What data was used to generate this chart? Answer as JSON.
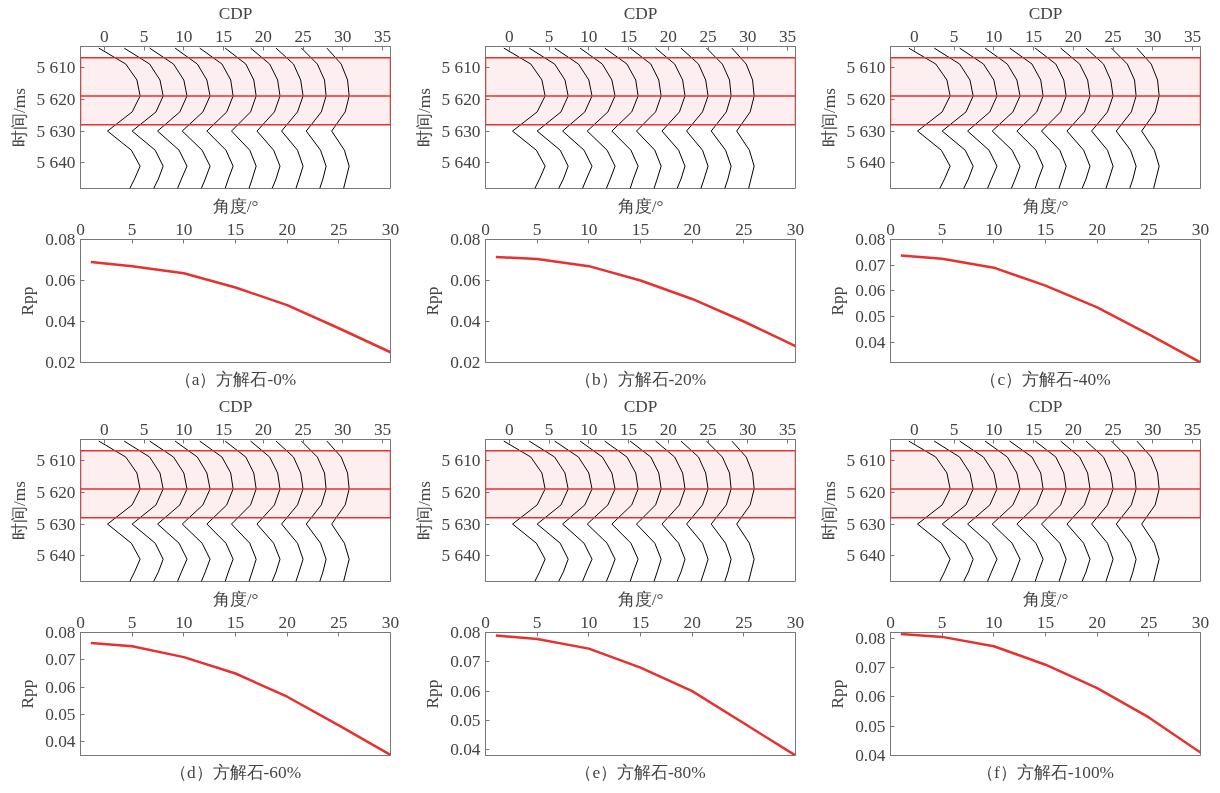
{
  "chart_data": [
    {
      "type": "line",
      "xlabel": "CDP",
      "ylabel": "时间/ms",
      "xlim": [
        -3,
        36
      ],
      "xticks": [
        0,
        5,
        10,
        15,
        20,
        25,
        30,
        35
      ],
      "ylim": [
        5648,
        5603.5
      ],
      "yticks": [
        {
          "value": 5610,
          "label": "5 610"
        },
        {
          "value": 5620,
          "label": "5 620"
        },
        {
          "value": 5630,
          "label": "5 630"
        },
        {
          "value": 5640,
          "label": "5 640"
        }
      ],
      "ref_lines": [
        {
          "axis": "y",
          "value": 5619,
          "color": "#e8312f"
        }
      ],
      "bands": [
        {
          "axis": "y",
          "from": 5607,
          "to": 5628,
          "color": "#e8312f"
        }
      ],
      "series": [
        {
          "color": "#000000",
          "x": [
            -0.7,
            2.7,
            4.1,
            4.5,
            3.5,
            0.4,
            3.4,
            4.5,
            3.8,
            3.2
          ],
          "values": [
            5604,
            5609,
            5614,
            5619,
            5624,
            5630,
            5636,
            5641,
            5645,
            5648
          ]
        },
        {
          "color": "#000000",
          "x": [
            2.5,
            5.7,
            7.0,
            7.4,
            6.5,
            3.5,
            6.4,
            7.4,
            6.8,
            6.2
          ],
          "values": [
            5604,
            5609,
            5614,
            5619,
            5624,
            5630,
            5636,
            5641,
            5645,
            5648
          ]
        },
        {
          "color": "#000000",
          "x": [
            5.7,
            8.7,
            10.0,
            10.4,
            9.5,
            6.7,
            9.4,
            10.4,
            9.7,
            9.2
          ],
          "values": [
            5604,
            5609,
            5614,
            5619,
            5624,
            5630,
            5636,
            5641,
            5645,
            5648
          ]
        },
        {
          "color": "#000000",
          "x": [
            8.9,
            11.7,
            12.9,
            13.3,
            12.4,
            9.8,
            12.3,
            13.3,
            12.7,
            12.2
          ],
          "values": [
            5604,
            5609,
            5614,
            5619,
            5624,
            5630,
            5636,
            5641,
            5645,
            5648
          ]
        },
        {
          "color": "#000000",
          "x": [
            12.0,
            14.8,
            15.9,
            16.2,
            15.4,
            12.9,
            15.3,
            16.2,
            15.6,
            15.2
          ],
          "values": [
            5604,
            5609,
            5614,
            5619,
            5624,
            5630,
            5636,
            5641,
            5645,
            5648
          ]
        },
        {
          "color": "#000000",
          "x": [
            15.2,
            17.8,
            18.8,
            19.1,
            18.4,
            16.0,
            18.3,
            19.1,
            18.6,
            18.2
          ],
          "values": [
            5604,
            5609,
            5614,
            5619,
            5624,
            5630,
            5636,
            5641,
            5645,
            5648
          ]
        },
        {
          "color": "#000000",
          "x": [
            18.4,
            20.8,
            21.8,
            22.1,
            21.4,
            19.2,
            21.3,
            22.1,
            21.6,
            21.1
          ],
          "values": [
            5604,
            5609,
            5614,
            5619,
            5624,
            5630,
            5636,
            5641,
            5645,
            5648
          ]
        },
        {
          "color": "#000000",
          "x": [
            21.6,
            23.8,
            24.7,
            25.0,
            24.3,
            22.3,
            24.3,
            25.0,
            24.5,
            24.1
          ],
          "values": [
            5604,
            5609,
            5614,
            5619,
            5624,
            5630,
            5636,
            5641,
            5645,
            5648
          ]
        },
        {
          "color": "#000000",
          "x": [
            24.8,
            26.8,
            27.7,
            27.9,
            27.3,
            25.4,
            27.2,
            27.9,
            27.5,
            27.1
          ],
          "values": [
            5604,
            5609,
            5614,
            5619,
            5624,
            5630,
            5636,
            5641,
            5645,
            5648
          ]
        },
        {
          "color": "#000000",
          "x": [
            28.0,
            29.8,
            30.6,
            30.8,
            30.3,
            28.6,
            30.2,
            30.8,
            30.4,
            30.1
          ],
          "values": [
            5604,
            5609,
            5614,
            5619,
            5624,
            5630,
            5636,
            5641,
            5645,
            5648
          ]
        }
      ]
    },
    {
      "type": "line",
      "xlabel": "CDP",
      "ylabel": "时间/ms",
      "xlim": [
        -3,
        36
      ],
      "xticks": [
        0,
        5,
        10,
        15,
        20,
        25,
        30,
        35
      ],
      "ylim": [
        5648,
        5603.5
      ],
      "yticks": [
        {
          "value": 5610,
          "label": "5 610"
        },
        {
          "value": 5620,
          "label": "5 620"
        },
        {
          "value": 5630,
          "label": "5 630"
        },
        {
          "value": 5640,
          "label": "5 640"
        }
      ],
      "ref_lines": [
        {
          "axis": "y",
          "value": 5619,
          "color": "#e8312f"
        }
      ],
      "bands": [
        {
          "axis": "y",
          "from": 5607,
          "to": 5628,
          "color": "#e8312f"
        }
      ],
      "series": [
        {
          "color": "#000000",
          "x": [
            -0.7,
            2.7,
            4.1,
            4.5,
            3.5,
            0.4,
            3.4,
            4.5,
            3.8,
            3.2
          ],
          "values": [
            5604,
            5609,
            5614,
            5619,
            5624,
            5630,
            5636,
            5641,
            5645,
            5648
          ]
        },
        {
          "color": "#000000",
          "x": [
            2.5,
            5.7,
            7.0,
            7.4,
            6.5,
            3.5,
            6.4,
            7.4,
            6.8,
            6.2
          ],
          "values": [
            5604,
            5609,
            5614,
            5619,
            5624,
            5630,
            5636,
            5641,
            5645,
            5648
          ]
        },
        {
          "color": "#000000",
          "x": [
            5.7,
            8.7,
            10.0,
            10.4,
            9.5,
            6.7,
            9.4,
            10.4,
            9.7,
            9.2
          ],
          "values": [
            5604,
            5609,
            5614,
            5619,
            5624,
            5630,
            5636,
            5641,
            5645,
            5648
          ]
        },
        {
          "color": "#000000",
          "x": [
            8.9,
            11.7,
            12.9,
            13.3,
            12.4,
            9.8,
            12.3,
            13.3,
            12.7,
            12.2
          ],
          "values": [
            5604,
            5609,
            5614,
            5619,
            5624,
            5630,
            5636,
            5641,
            5645,
            5648
          ]
        },
        {
          "color": "#000000",
          "x": [
            12.0,
            14.8,
            15.9,
            16.2,
            15.4,
            12.9,
            15.3,
            16.2,
            15.6,
            15.2
          ],
          "values": [
            5604,
            5609,
            5614,
            5619,
            5624,
            5630,
            5636,
            5641,
            5645,
            5648
          ]
        },
        {
          "color": "#000000",
          "x": [
            15.2,
            17.8,
            18.8,
            19.1,
            18.4,
            16.0,
            18.3,
            19.1,
            18.6,
            18.2
          ],
          "values": [
            5604,
            5609,
            5614,
            5619,
            5624,
            5630,
            5636,
            5641,
            5645,
            5648
          ]
        },
        {
          "color": "#000000",
          "x": [
            18.4,
            20.8,
            21.8,
            22.1,
            21.4,
            19.2,
            21.3,
            22.1,
            21.6,
            21.1
          ],
          "values": [
            5604,
            5609,
            5614,
            5619,
            5624,
            5630,
            5636,
            5641,
            5645,
            5648
          ]
        },
        {
          "color": "#000000",
          "x": [
            21.6,
            23.8,
            24.7,
            25.0,
            24.3,
            22.3,
            24.3,
            25.0,
            24.5,
            24.1
          ],
          "values": [
            5604,
            5609,
            5614,
            5619,
            5624,
            5630,
            5636,
            5641,
            5645,
            5648
          ]
        },
        {
          "color": "#000000",
          "x": [
            24.8,
            26.8,
            27.7,
            27.9,
            27.3,
            25.4,
            27.2,
            27.9,
            27.5,
            27.1
          ],
          "values": [
            5604,
            5609,
            5614,
            5619,
            5624,
            5630,
            5636,
            5641,
            5645,
            5648
          ]
        },
        {
          "color": "#000000",
          "x": [
            28.0,
            29.8,
            30.6,
            30.8,
            30.3,
            28.6,
            30.2,
            30.8,
            30.4,
            30.1
          ],
          "values": [
            5604,
            5609,
            5614,
            5619,
            5624,
            5630,
            5636,
            5641,
            5645,
            5648
          ]
        }
      ]
    },
    {
      "type": "line",
      "xlabel": "CDP",
      "ylabel": "时间/ms",
      "xlim": [
        -3,
        36
      ],
      "xticks": [
        0,
        5,
        10,
        15,
        20,
        25,
        30,
        35
      ],
      "ylim": [
        5648,
        5603.5
      ],
      "yticks": [
        {
          "value": 5610,
          "label": "5 610"
        },
        {
          "value": 5620,
          "label": "5 620"
        },
        {
          "value": 5630,
          "label": "5 630"
        },
        {
          "value": 5640,
          "label": "5 640"
        }
      ],
      "ref_lines": [
        {
          "axis": "y",
          "value": 5619,
          "color": "#e8312f"
        }
      ],
      "bands": [
        {
          "axis": "y",
          "from": 5607,
          "to": 5628,
          "color": "#e8312f"
        }
      ],
      "series": [
        {
          "color": "#000000",
          "x": [
            -0.7,
            2.7,
            4.1,
            4.5,
            3.5,
            0.4,
            3.4,
            4.5,
            3.8,
            3.2
          ],
          "values": [
            5604,
            5609,
            5614,
            5619,
            5624,
            5630,
            5636,
            5641,
            5645,
            5648
          ]
        },
        {
          "color": "#000000",
          "x": [
            2.5,
            5.7,
            7.0,
            7.4,
            6.5,
            3.5,
            6.4,
            7.4,
            6.8,
            6.2
          ],
          "values": [
            5604,
            5609,
            5614,
            5619,
            5624,
            5630,
            5636,
            5641,
            5645,
            5648
          ]
        },
        {
          "color": "#000000",
          "x": [
            5.7,
            8.7,
            10.0,
            10.4,
            9.5,
            6.7,
            9.4,
            10.4,
            9.7,
            9.2
          ],
          "values": [
            5604,
            5609,
            5614,
            5619,
            5624,
            5630,
            5636,
            5641,
            5645,
            5648
          ]
        },
        {
          "color": "#000000",
          "x": [
            8.9,
            11.7,
            12.9,
            13.3,
            12.4,
            9.8,
            12.3,
            13.3,
            12.7,
            12.2
          ],
          "values": [
            5604,
            5609,
            5614,
            5619,
            5624,
            5630,
            5636,
            5641,
            5645,
            5648
          ]
        },
        {
          "color": "#000000",
          "x": [
            12.0,
            14.8,
            15.9,
            16.2,
            15.4,
            12.9,
            15.3,
            16.2,
            15.6,
            15.2
          ],
          "values": [
            5604,
            5609,
            5614,
            5619,
            5624,
            5630,
            5636,
            5641,
            5645,
            5648
          ]
        },
        {
          "color": "#000000",
          "x": [
            15.2,
            17.8,
            18.8,
            19.1,
            18.4,
            16.0,
            18.3,
            19.1,
            18.6,
            18.2
          ],
          "values": [
            5604,
            5609,
            5614,
            5619,
            5624,
            5630,
            5636,
            5641,
            5645,
            5648
          ]
        },
        {
          "color": "#000000",
          "x": [
            18.4,
            20.8,
            21.8,
            22.1,
            21.4,
            19.2,
            21.3,
            22.1,
            21.6,
            21.1
          ],
          "values": [
            5604,
            5609,
            5614,
            5619,
            5624,
            5630,
            5636,
            5641,
            5645,
            5648
          ]
        },
        {
          "color": "#000000",
          "x": [
            21.6,
            23.8,
            24.7,
            25.0,
            24.3,
            22.3,
            24.3,
            25.0,
            24.5,
            24.1
          ],
          "values": [
            5604,
            5609,
            5614,
            5619,
            5624,
            5630,
            5636,
            5641,
            5645,
            5648
          ]
        },
        {
          "color": "#000000",
          "x": [
            24.8,
            26.8,
            27.7,
            27.9,
            27.3,
            25.4,
            27.2,
            27.9,
            27.5,
            27.1
          ],
          "values": [
            5604,
            5609,
            5614,
            5619,
            5624,
            5630,
            5636,
            5641,
            5645,
            5648
          ]
        },
        {
          "color": "#000000",
          "x": [
            28.0,
            29.8,
            30.6,
            30.8,
            30.3,
            28.6,
            30.2,
            30.8,
            30.4,
            30.1
          ],
          "values": [
            5604,
            5609,
            5614,
            5619,
            5624,
            5630,
            5636,
            5641,
            5645,
            5648
          ]
        }
      ]
    },
    {
      "type": "line",
      "xlabel": "角度/°",
      "ylabel": "Rpp",
      "annotations": [
        "（a）方解石-0%"
      ],
      "xlim": [
        0,
        30
      ],
      "xticks": [
        0,
        5,
        10,
        15,
        20,
        25,
        30
      ],
      "ylim": [
        0.02,
        0.08
      ],
      "yticks": [
        0.02,
        0.04,
        0.06,
        0.08
      ],
      "color": "#e8312f",
      "x": [
        1,
        5,
        10,
        15,
        20,
        25,
        30
      ],
      "values": [
        0.069,
        0.067,
        0.0635,
        0.0566,
        0.048,
        0.0367,
        0.025
      ]
    },
    {
      "type": "line",
      "xlabel": "角度/°",
      "ylabel": "Rpp",
      "annotations": [
        "（b）方解石-20%"
      ],
      "xlim": [
        0,
        30
      ],
      "xticks": [
        0,
        5,
        10,
        15,
        20,
        25,
        30
      ],
      "ylim": [
        0.02,
        0.08
      ],
      "yticks": [
        0.02,
        0.04,
        0.06,
        0.08
      ],
      "color": "#e8312f",
      "x": [
        1,
        5,
        10,
        15,
        20,
        25,
        30
      ],
      "values": [
        0.0715,
        0.0705,
        0.067,
        0.06,
        0.051,
        0.04,
        0.028
      ]
    },
    {
      "type": "line",
      "xlabel": "角度/°",
      "ylabel": "Rpp",
      "annotations": [
        "（c）方解石-40%"
      ],
      "xlim": [
        0,
        30
      ],
      "xticks": [
        0,
        5,
        10,
        15,
        20,
        25,
        30
      ],
      "ylim": [
        0.032,
        0.08
      ],
      "yticks": [
        0.04,
        0.05,
        0.06,
        0.07,
        0.08
      ],
      "color": "#e8312f",
      "x": [
        1,
        5,
        10,
        15,
        20,
        25,
        30
      ],
      "values": [
        0.0738,
        0.0725,
        0.069,
        0.062,
        0.0535,
        0.043,
        0.032
      ]
    },
    {
      "type": "line",
      "xlabel": "CDP",
      "ylabel": "时间/ms",
      "xlim": [
        -3,
        36
      ],
      "xticks": [
        0,
        5,
        10,
        15,
        20,
        25,
        30,
        35
      ],
      "ylim": [
        5648,
        5603.5
      ],
      "yticks": [
        {
          "value": 5610,
          "label": "5 610"
        },
        {
          "value": 5620,
          "label": "5 620"
        },
        {
          "value": 5630,
          "label": "5 630"
        },
        {
          "value": 5640,
          "label": "5 640"
        }
      ],
      "ref_lines": [
        {
          "axis": "y",
          "value": 5619,
          "color": "#e8312f"
        }
      ],
      "bands": [
        {
          "axis": "y",
          "from": 5607,
          "to": 5628,
          "color": "#e8312f"
        }
      ],
      "series": [
        {
          "color": "#000000",
          "x": [
            -0.7,
            2.7,
            4.1,
            4.5,
            3.5,
            0.4,
            3.4,
            4.5,
            3.8,
            3.2
          ],
          "values": [
            5604,
            5609,
            5614,
            5619,
            5624,
            5630,
            5636,
            5641,
            5645,
            5648
          ]
        },
        {
          "color": "#000000",
          "x": [
            2.5,
            5.7,
            7.0,
            7.4,
            6.5,
            3.5,
            6.4,
            7.4,
            6.8,
            6.2
          ],
          "values": [
            5604,
            5609,
            5614,
            5619,
            5624,
            5630,
            5636,
            5641,
            5645,
            5648
          ]
        },
        {
          "color": "#000000",
          "x": [
            5.7,
            8.7,
            10.0,
            10.4,
            9.5,
            6.7,
            9.4,
            10.4,
            9.7,
            9.2
          ],
          "values": [
            5604,
            5609,
            5614,
            5619,
            5624,
            5630,
            5636,
            5641,
            5645,
            5648
          ]
        },
        {
          "color": "#000000",
          "x": [
            8.9,
            11.7,
            12.9,
            13.3,
            12.4,
            9.8,
            12.3,
            13.3,
            12.7,
            12.2
          ],
          "values": [
            5604,
            5609,
            5614,
            5619,
            5624,
            5630,
            5636,
            5641,
            5645,
            5648
          ]
        },
        {
          "color": "#000000",
          "x": [
            12.0,
            14.8,
            15.9,
            16.2,
            15.4,
            12.9,
            15.3,
            16.2,
            15.6,
            15.2
          ],
          "values": [
            5604,
            5609,
            5614,
            5619,
            5624,
            5630,
            5636,
            5641,
            5645,
            5648
          ]
        },
        {
          "color": "#000000",
          "x": [
            15.2,
            17.8,
            18.8,
            19.1,
            18.4,
            16.0,
            18.3,
            19.1,
            18.6,
            18.2
          ],
          "values": [
            5604,
            5609,
            5614,
            5619,
            5624,
            5630,
            5636,
            5641,
            5645,
            5648
          ]
        },
        {
          "color": "#000000",
          "x": [
            18.4,
            20.8,
            21.8,
            22.1,
            21.4,
            19.2,
            21.3,
            22.1,
            21.6,
            21.1
          ],
          "values": [
            5604,
            5609,
            5614,
            5619,
            5624,
            5630,
            5636,
            5641,
            5645,
            5648
          ]
        },
        {
          "color": "#000000",
          "x": [
            21.6,
            23.8,
            24.7,
            25.0,
            24.3,
            22.3,
            24.3,
            25.0,
            24.5,
            24.1
          ],
          "values": [
            5604,
            5609,
            5614,
            5619,
            5624,
            5630,
            5636,
            5641,
            5645,
            5648
          ]
        },
        {
          "color": "#000000",
          "x": [
            24.8,
            26.8,
            27.7,
            27.9,
            27.3,
            25.4,
            27.2,
            27.9,
            27.5,
            27.1
          ],
          "values": [
            5604,
            5609,
            5614,
            5619,
            5624,
            5630,
            5636,
            5641,
            5645,
            5648
          ]
        },
        {
          "color": "#000000",
          "x": [
            28.0,
            29.8,
            30.6,
            30.8,
            30.3,
            28.6,
            30.2,
            30.8,
            30.4,
            30.1
          ],
          "values": [
            5604,
            5609,
            5614,
            5619,
            5624,
            5630,
            5636,
            5641,
            5645,
            5648
          ]
        }
      ]
    },
    {
      "type": "line",
      "xlabel": "CDP",
      "ylabel": "时间/ms",
      "xlim": [
        -3,
        36
      ],
      "xticks": [
        0,
        5,
        10,
        15,
        20,
        25,
        30,
        35
      ],
      "ylim": [
        5648,
        5603.5
      ],
      "yticks": [
        {
          "value": 5610,
          "label": "5 610"
        },
        {
          "value": 5620,
          "label": "5 620"
        },
        {
          "value": 5630,
          "label": "5 630"
        },
        {
          "value": 5640,
          "label": "5 640"
        }
      ],
      "ref_lines": [
        {
          "axis": "y",
          "value": 5619,
          "color": "#e8312f"
        }
      ],
      "bands": [
        {
          "axis": "y",
          "from": 5607,
          "to": 5628,
          "color": "#e8312f"
        }
      ],
      "series": [
        {
          "color": "#000000",
          "x": [
            -0.7,
            2.7,
            4.1,
            4.5,
            3.5,
            0.4,
            3.4,
            4.5,
            3.8,
            3.2
          ],
          "values": [
            5604,
            5609,
            5614,
            5619,
            5624,
            5630,
            5636,
            5641,
            5645,
            5648
          ]
        },
        {
          "color": "#000000",
          "x": [
            2.5,
            5.7,
            7.0,
            7.4,
            6.5,
            3.5,
            6.4,
            7.4,
            6.8,
            6.2
          ],
          "values": [
            5604,
            5609,
            5614,
            5619,
            5624,
            5630,
            5636,
            5641,
            5645,
            5648
          ]
        },
        {
          "color": "#000000",
          "x": [
            5.7,
            8.7,
            10.0,
            10.4,
            9.5,
            6.7,
            9.4,
            10.4,
            9.7,
            9.2
          ],
          "values": [
            5604,
            5609,
            5614,
            5619,
            5624,
            5630,
            5636,
            5641,
            5645,
            5648
          ]
        },
        {
          "color": "#000000",
          "x": [
            8.9,
            11.7,
            12.9,
            13.3,
            12.4,
            9.8,
            12.3,
            13.3,
            12.7,
            12.2
          ],
          "values": [
            5604,
            5609,
            5614,
            5619,
            5624,
            5630,
            5636,
            5641,
            5645,
            5648
          ]
        },
        {
          "color": "#000000",
          "x": [
            12.0,
            14.8,
            15.9,
            16.2,
            15.4,
            12.9,
            15.3,
            16.2,
            15.6,
            15.2
          ],
          "values": [
            5604,
            5609,
            5614,
            5619,
            5624,
            5630,
            5636,
            5641,
            5645,
            5648
          ]
        },
        {
          "color": "#000000",
          "x": [
            15.2,
            17.8,
            18.8,
            19.1,
            18.4,
            16.0,
            18.3,
            19.1,
            18.6,
            18.2
          ],
          "values": [
            5604,
            5609,
            5614,
            5619,
            5624,
            5630,
            5636,
            5641,
            5645,
            5648
          ]
        },
        {
          "color": "#000000",
          "x": [
            18.4,
            20.8,
            21.8,
            22.1,
            21.4,
            19.2,
            21.3,
            22.1,
            21.6,
            21.1
          ],
          "values": [
            5604,
            5609,
            5614,
            5619,
            5624,
            5630,
            5636,
            5641,
            5645,
            5648
          ]
        },
        {
          "color": "#000000",
          "x": [
            21.6,
            23.8,
            24.7,
            25.0,
            24.3,
            22.3,
            24.3,
            25.0,
            24.5,
            24.1
          ],
          "values": [
            5604,
            5609,
            5614,
            5619,
            5624,
            5630,
            5636,
            5641,
            5645,
            5648
          ]
        },
        {
          "color": "#000000",
          "x": [
            24.8,
            26.8,
            27.7,
            27.9,
            27.3,
            25.4,
            27.2,
            27.9,
            27.5,
            27.1
          ],
          "values": [
            5604,
            5609,
            5614,
            5619,
            5624,
            5630,
            5636,
            5641,
            5645,
            5648
          ]
        },
        {
          "color": "#000000",
          "x": [
            28.0,
            29.8,
            30.6,
            30.8,
            30.3,
            28.6,
            30.2,
            30.8,
            30.4,
            30.1
          ],
          "values": [
            5604,
            5609,
            5614,
            5619,
            5624,
            5630,
            5636,
            5641,
            5645,
            5648
          ]
        }
      ]
    },
    {
      "type": "line",
      "xlabel": "CDP",
      "ylabel": "时间/ms",
      "xlim": [
        -3,
        36
      ],
      "xticks": [
        0,
        5,
        10,
        15,
        20,
        25,
        30,
        35
      ],
      "ylim": [
        5648,
        5603.5
      ],
      "yticks": [
        {
          "value": 5610,
          "label": "5 610"
        },
        {
          "value": 5620,
          "label": "5 620"
        },
        {
          "value": 5630,
          "label": "5 630"
        },
        {
          "value": 5640,
          "label": "5 640"
        }
      ],
      "ref_lines": [
        {
          "axis": "y",
          "value": 5619,
          "color": "#e8312f"
        }
      ],
      "bands": [
        {
          "axis": "y",
          "from": 5607,
          "to": 5628,
          "color": "#e8312f"
        }
      ],
      "series": [
        {
          "color": "#000000",
          "x": [
            -0.7,
            2.7,
            4.1,
            4.5,
            3.5,
            0.4,
            3.4,
            4.5,
            3.8,
            3.2
          ],
          "values": [
            5604,
            5609,
            5614,
            5619,
            5624,
            5630,
            5636,
            5641,
            5645,
            5648
          ]
        },
        {
          "color": "#000000",
          "x": [
            2.5,
            5.7,
            7.0,
            7.4,
            6.5,
            3.5,
            6.4,
            7.4,
            6.8,
            6.2
          ],
          "values": [
            5604,
            5609,
            5614,
            5619,
            5624,
            5630,
            5636,
            5641,
            5645,
            5648
          ]
        },
        {
          "color": "#000000",
          "x": [
            5.7,
            8.7,
            10.0,
            10.4,
            9.5,
            6.7,
            9.4,
            10.4,
            9.7,
            9.2
          ],
          "values": [
            5604,
            5609,
            5614,
            5619,
            5624,
            5630,
            5636,
            5641,
            5645,
            5648
          ]
        },
        {
          "color": "#000000",
          "x": [
            8.9,
            11.7,
            12.9,
            13.3,
            12.4,
            9.8,
            12.3,
            13.3,
            12.7,
            12.2
          ],
          "values": [
            5604,
            5609,
            5614,
            5619,
            5624,
            5630,
            5636,
            5641,
            5645,
            5648
          ]
        },
        {
          "color": "#000000",
          "x": [
            12.0,
            14.8,
            15.9,
            16.2,
            15.4,
            12.9,
            15.3,
            16.2,
            15.6,
            15.2
          ],
          "values": [
            5604,
            5609,
            5614,
            5619,
            5624,
            5630,
            5636,
            5641,
            5645,
            5648
          ]
        },
        {
          "color": "#000000",
          "x": [
            15.2,
            17.8,
            18.8,
            19.1,
            18.4,
            16.0,
            18.3,
            19.1,
            18.6,
            18.2
          ],
          "values": [
            5604,
            5609,
            5614,
            5619,
            5624,
            5630,
            5636,
            5641,
            5645,
            5648
          ]
        },
        {
          "color": "#000000",
          "x": [
            18.4,
            20.8,
            21.8,
            22.1,
            21.4,
            19.2,
            21.3,
            22.1,
            21.6,
            21.1
          ],
          "values": [
            5604,
            5609,
            5614,
            5619,
            5624,
            5630,
            5636,
            5641,
            5645,
            5648
          ]
        },
        {
          "color": "#000000",
          "x": [
            21.6,
            23.8,
            24.7,
            25.0,
            24.3,
            22.3,
            24.3,
            25.0,
            24.5,
            24.1
          ],
          "values": [
            5604,
            5609,
            5614,
            5619,
            5624,
            5630,
            5636,
            5641,
            5645,
            5648
          ]
        },
        {
          "color": "#000000",
          "x": [
            24.8,
            26.8,
            27.7,
            27.9,
            27.3,
            25.4,
            27.2,
            27.9,
            27.5,
            27.1
          ],
          "values": [
            5604,
            5609,
            5614,
            5619,
            5624,
            5630,
            5636,
            5641,
            5645,
            5648
          ]
        },
        {
          "color": "#000000",
          "x": [
            28.0,
            29.8,
            30.6,
            30.8,
            30.3,
            28.6,
            30.2,
            30.8,
            30.4,
            30.1
          ],
          "values": [
            5604,
            5609,
            5614,
            5619,
            5624,
            5630,
            5636,
            5641,
            5645,
            5648
          ]
        }
      ]
    },
    {
      "type": "line",
      "xlabel": "角度/°",
      "ylabel": "Rpp",
      "annotations": [
        "（d）方解石-60%"
      ],
      "xlim": [
        0,
        30
      ],
      "xticks": [
        0,
        5,
        10,
        15,
        20,
        25,
        30
      ],
      "ylim": [
        0.035,
        0.08
      ],
      "yticks": [
        0.04,
        0.05,
        0.06,
        0.07,
        0.08
      ],
      "color": "#e8312f",
      "x": [
        1,
        5,
        10,
        15,
        20,
        25,
        30
      ],
      "values": [
        0.0762,
        0.075,
        0.071,
        0.065,
        0.0565,
        0.046,
        0.0352
      ]
    },
    {
      "type": "line",
      "xlabel": "角度/°",
      "ylabel": "Rpp",
      "annotations": [
        "（e）方解石-80%"
      ],
      "xlim": [
        0,
        30
      ],
      "xticks": [
        0,
        5,
        10,
        15,
        20,
        25,
        30
      ],
      "ylim": [
        0.038,
        0.08
      ],
      "yticks": [
        0.04,
        0.05,
        0.06,
        0.07,
        0.08
      ],
      "color": "#e8312f",
      "x": [
        1,
        5,
        10,
        15,
        20,
        25,
        30
      ],
      "values": [
        0.079,
        0.0778,
        0.0745,
        0.068,
        0.06,
        0.049,
        0.038
      ]
    },
    {
      "type": "line",
      "xlabel": "角度/°",
      "ylabel": "Rpp",
      "annotations": [
        "（f）方解石-100%"
      ],
      "xlim": [
        0,
        30
      ],
      "xticks": [
        0,
        5,
        10,
        15,
        20,
        25,
        30
      ],
      "ylim": [
        0.04,
        0.082
      ],
      "yticks": [
        0.04,
        0.05,
        0.06,
        0.07,
        0.08
      ],
      "color": "#e8312f",
      "x": [
        1,
        5,
        10,
        15,
        20,
        25,
        30
      ],
      "values": [
        0.0815,
        0.0805,
        0.0773,
        0.071,
        0.063,
        0.053,
        0.041
      ]
    }
  ]
}
